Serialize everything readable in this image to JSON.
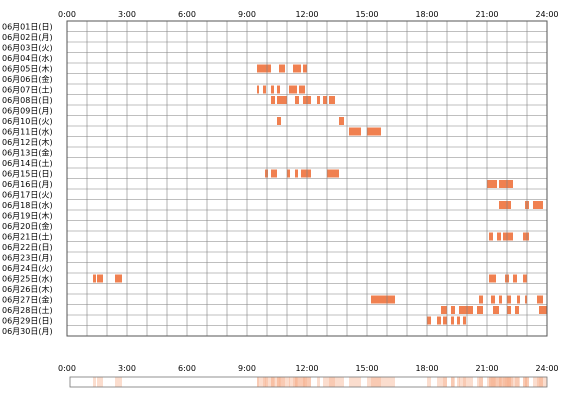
{
  "chart_data": {
    "type": "heatmap",
    "title": "",
    "xlabel": "",
    "ylabel": "",
    "xlim": [
      0,
      24
    ],
    "x_ticks": [
      "0:00",
      "3:00",
      "6:00",
      "9:00",
      "12:00",
      "15:00",
      "18:00",
      "21:00",
      "24:00"
    ],
    "grid": true,
    "colors": {
      "activity": "#f08050",
      "grid": "#808080",
      "summary": "#f7b393"
    },
    "rows": [
      "06月01日(日)",
      "06月02日(月)",
      "06月03日(火)",
      "06月04日(水)",
      "06月05日(木)",
      "06月06日(金)",
      "06月07日(土)",
      "06月08日(日)",
      "06月09日(月)",
      "06月10日(火)",
      "06月11日(水)",
      "06月12日(木)",
      "06月13日(金)",
      "06月14日(土)",
      "06月15日(日)",
      "06月16日(月)",
      "06月17日(火)",
      "06月18日(水)",
      "06月19日(木)",
      "06月20日(金)",
      "06月21日(土)",
      "06月22日(日)",
      "06月23日(月)",
      "06月24日(火)",
      "06月25日(水)",
      "06月26日(木)",
      "06月27日(金)",
      "06月28日(土)",
      "06月29日(日)",
      "06月30日(月)"
    ],
    "segments": [
      [],
      [],
      [],
      [],
      [
        [
          9.5,
          10.2
        ],
        [
          10.6,
          10.9
        ],
        [
          11.3,
          11.7
        ],
        [
          11.8,
          12.0
        ]
      ],
      [],
      [
        [
          9.5,
          9.6
        ],
        [
          9.8,
          9.95
        ],
        [
          10.2,
          10.35
        ],
        [
          10.5,
          10.65
        ],
        [
          11.1,
          11.5
        ],
        [
          11.6,
          11.9
        ]
      ],
      [
        [
          10.2,
          10.4
        ],
        [
          10.5,
          11.0
        ],
        [
          11.4,
          11.6
        ],
        [
          11.8,
          12.2
        ],
        [
          12.5,
          12.65
        ],
        [
          12.8,
          13.0
        ],
        [
          13.1,
          13.4
        ]
      ],
      [],
      [
        [
          10.5,
          10.7
        ],
        [
          13.6,
          13.85
        ]
      ],
      [
        [
          14.1,
          14.7
        ],
        [
          15.0,
          15.7
        ]
      ],
      [],
      [],
      [],
      [
        [
          9.9,
          10.05
        ],
        [
          10.2,
          10.5
        ],
        [
          11.0,
          11.15
        ],
        [
          11.4,
          11.55
        ],
        [
          11.7,
          12.2
        ],
        [
          13.0,
          13.6
        ]
      ],
      [
        [
          21.0,
          21.5
        ],
        [
          21.6,
          22.3
        ]
      ],
      [],
      [
        [
          21.6,
          22.2
        ],
        [
          22.9,
          23.1
        ],
        [
          23.3,
          23.8
        ]
      ],
      [],
      [],
      [
        [
          21.1,
          21.3
        ],
        [
          21.5,
          21.7
        ],
        [
          21.8,
          22.3
        ],
        [
          22.8,
          23.1
        ]
      ],
      [],
      [],
      [],
      [
        [
          1.3,
          1.45
        ],
        [
          1.5,
          1.8
        ],
        [
          2.4,
          2.75
        ],
        [
          21.1,
          21.45
        ],
        [
          21.9,
          22.1
        ],
        [
          22.3,
          22.5
        ],
        [
          22.8,
          23.0
        ]
      ],
      [],
      [
        [
          15.2,
          16.4
        ],
        [
          20.6,
          20.8
        ],
        [
          21.2,
          21.4
        ],
        [
          21.6,
          21.75
        ],
        [
          22.0,
          22.2
        ],
        [
          22.5,
          22.65
        ],
        [
          22.9,
          23.0
        ],
        [
          23.5,
          23.8
        ]
      ],
      [
        [
          18.7,
          19.0
        ],
        [
          19.2,
          19.4
        ],
        [
          19.6,
          20.3
        ],
        [
          20.5,
          20.8
        ],
        [
          21.3,
          21.6
        ],
        [
          22.0,
          22.2
        ],
        [
          22.4,
          22.6
        ],
        [
          23.6,
          24.0
        ]
      ],
      [
        [
          18.0,
          18.2
        ],
        [
          18.5,
          18.7
        ],
        [
          18.8,
          19.0
        ],
        [
          19.2,
          19.35
        ],
        [
          19.5,
          19.65
        ],
        [
          19.8,
          19.95
        ]
      ],
      []
    ]
  }
}
